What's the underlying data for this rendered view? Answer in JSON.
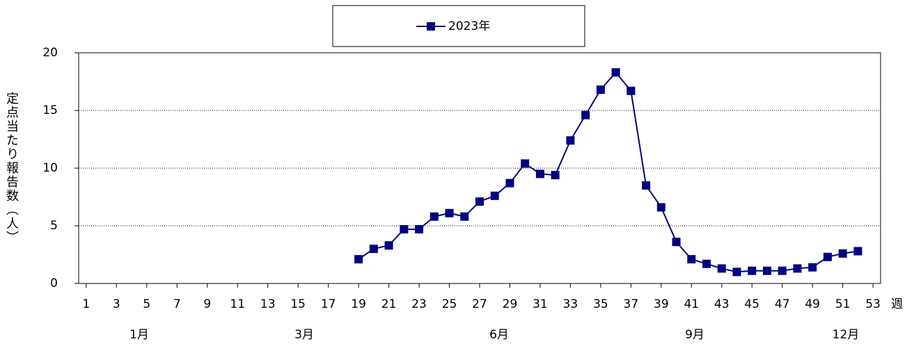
{
  "chart_data": {
    "type": "line",
    "y_label": "定点当たり報告数（人）",
    "x_label": "週",
    "month_labels": [
      "1月",
      "3月",
      "6月",
      "9月",
      "12月"
    ],
    "x": [
      19,
      20,
      21,
      22,
      23,
      24,
      25,
      26,
      27,
      28,
      29,
      30,
      31,
      32,
      33,
      34,
      35,
      36,
      37,
      38,
      39,
      40,
      41,
      42,
      43,
      44,
      45,
      46,
      47,
      48,
      49,
      50,
      51,
      52
    ],
    "series": [
      {
        "name": "2023年",
        "color": "#000080",
        "values": [
          2.1,
          3.0,
          3.3,
          4.7,
          4.7,
          5.8,
          6.1,
          5.8,
          7.1,
          7.6,
          8.7,
          10.4,
          9.5,
          9.4,
          12.4,
          14.6,
          16.8,
          18.3,
          16.7,
          8.5,
          6.6,
          3.6,
          2.1,
          1.7,
          1.3,
          1.0,
          1.1,
          1.1,
          1.1,
          1.3,
          1.4,
          2.3,
          2.6,
          2.8
        ]
      }
    ],
    "xlim": [
      0.5,
      53.5
    ],
    "xticks": [
      1,
      3,
      5,
      7,
      9,
      11,
      13,
      15,
      17,
      19,
      21,
      23,
      25,
      27,
      29,
      31,
      33,
      35,
      37,
      39,
      41,
      43,
      45,
      47,
      49,
      51,
      53
    ],
    "ylim": [
      0,
      20
    ],
    "yticks": [
      0,
      5,
      10,
      15,
      20
    ],
    "grid": true,
    "legend": "top"
  }
}
